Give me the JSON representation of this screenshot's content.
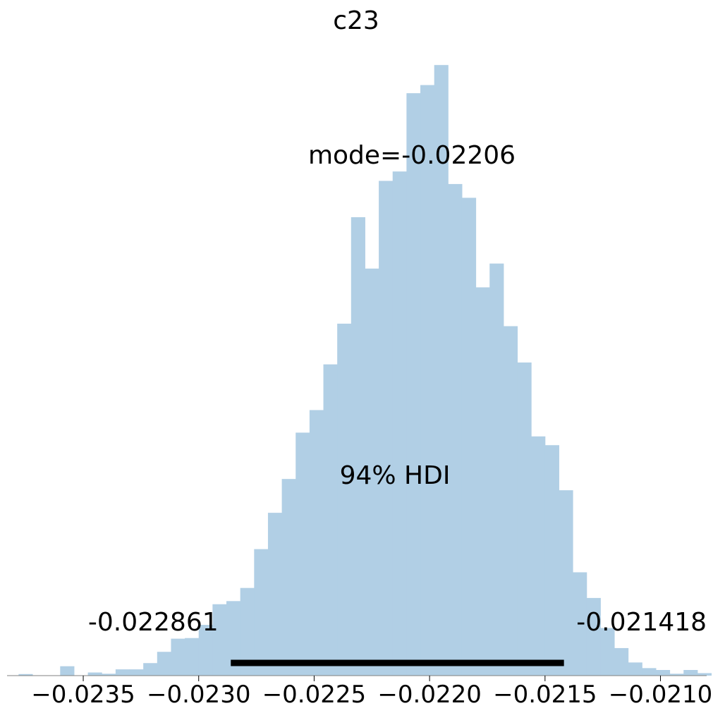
{
  "chart_data": {
    "type": "bar",
    "title": "c23",
    "xlabel": "",
    "ylabel": "",
    "xlim": [
      -0.02383,
      -0.0208
    ],
    "ylim": [
      0,
      1
    ],
    "grid": false,
    "color": "#b1cfe5",
    "hdi_color": "#000000",
    "axis_color": "#808080",
    "bin_edges": [
      -0.02378,
      -0.02372,
      -0.02366,
      -0.0236,
      -0.02354,
      -0.02348,
      -0.02342,
      -0.02336,
      -0.0233,
      -0.02324,
      -0.02318,
      -0.02312,
      -0.02306,
      -0.023,
      -0.02294,
      -0.02288,
      -0.02282,
      -0.02276,
      -0.0227,
      -0.02264,
      -0.02258,
      -0.02252,
      -0.02246,
      -0.0224,
      -0.02234,
      -0.02228,
      -0.02222,
      -0.02216,
      -0.0221,
      -0.02204,
      -0.02198,
      -0.02192,
      -0.02186,
      -0.0218,
      -0.02174,
      -0.02168,
      -0.02162,
      -0.02156,
      -0.0215,
      -0.02144,
      -0.02138,
      -0.02132,
      -0.02126,
      -0.0212,
      -0.02114,
      -0.02108,
      -0.02102,
      -0.02096,
      -0.0209,
      -0.02084
    ],
    "values": [
      0.0025,
      0.0,
      0.0,
      0.015,
      0.0,
      0.005,
      0.003,
      0.01,
      0.01,
      0.02,
      0.038,
      0.059,
      0.06,
      0.081,
      0.114,
      0.119,
      0.14,
      0.202,
      0.26,
      0.314,
      0.388,
      0.424,
      0.497,
      0.562,
      0.732,
      0.65,
      0.79,
      0.805,
      0.93,
      0.943,
      0.975,
      0.785,
      0.763,
      0.62,
      0.658,
      0.558,
      0.5,
      0.382,
      0.368,
      0.296,
      0.165,
      0.124,
      0.076,
      0.044,
      0.021,
      0.012,
      0.009,
      0.003,
      0.009,
      0.004
    ],
    "x_ticks": [
      -0.0235,
      -0.023,
      -0.0225,
      -0.022,
      -0.0215,
      -0.021
    ],
    "x_tick_labels": [
      "−0.0235",
      "−0.0230",
      "−0.0225",
      "−0.0220",
      "−0.0215",
      "−0.0210"
    ],
    "hdi": {
      "low": -0.022861,
      "high": -0.021418,
      "low_label": "-0.022861",
      "high_label": "-0.021418",
      "label": "94% HDI"
    },
    "mode_label": "mode=-0.02206"
  }
}
